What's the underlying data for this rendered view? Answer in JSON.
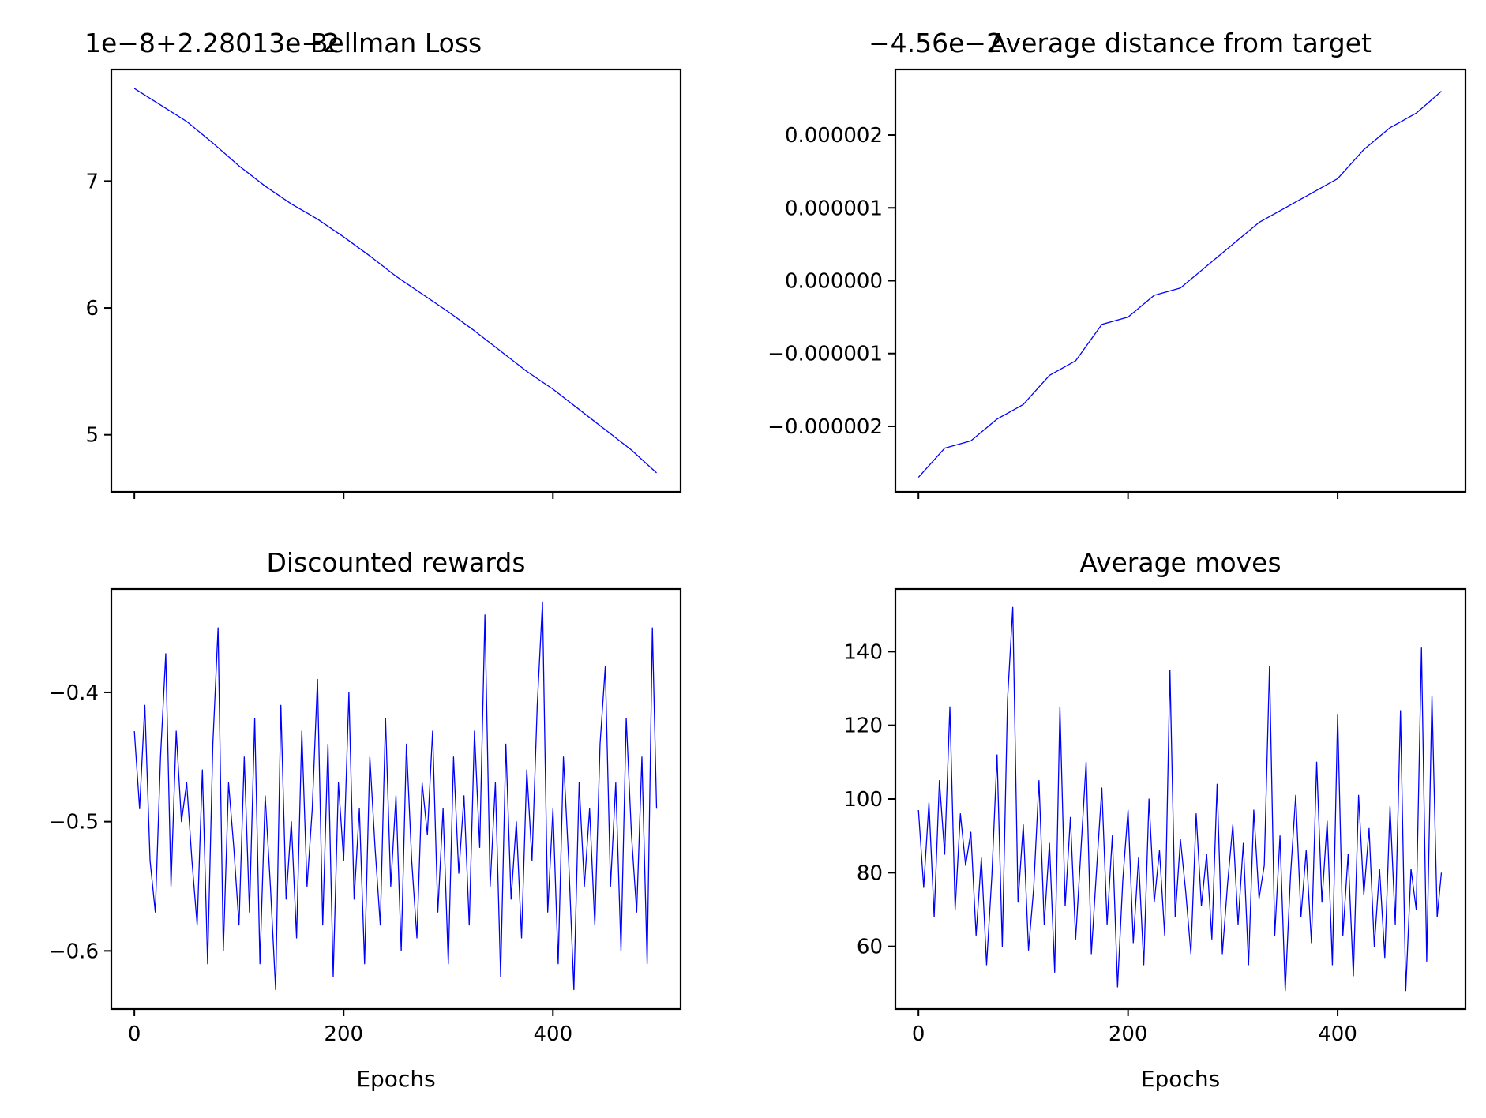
{
  "chart_data": [
    {
      "type": "line",
      "title": "Bellman Loss",
      "offset_text": "1e−8+2.28013e−2",
      "xlabel": "",
      "ylabel": "",
      "xlim": [
        -22,
        522
      ],
      "ylim": [
        4.55,
        7.88
      ],
      "x_ticks": [
        0,
        200,
        400
      ],
      "x_tick_labels": [],
      "y_ticks": [
        5,
        6,
        7
      ],
      "y_tick_labels": [
        "5",
        "6",
        "7"
      ],
      "grid": false,
      "series": [
        {
          "color": "#0000ff",
          "x": [
            0,
            25,
            50,
            75,
            100,
            125,
            150,
            175,
            200,
            225,
            250,
            275,
            300,
            325,
            350,
            375,
            400,
            425,
            450,
            475,
            499
          ],
          "values": [
            7.73,
            7.6,
            7.47,
            7.3,
            7.12,
            6.96,
            6.82,
            6.7,
            6.56,
            6.41,
            6.25,
            6.11,
            5.97,
            5.82,
            5.66,
            5.5,
            5.36,
            5.2,
            5.04,
            4.88,
            4.7
          ]
        }
      ]
    },
    {
      "type": "line",
      "title": "Average distance from target",
      "offset_text": "−4.56e−2",
      "xlabel": "",
      "ylabel": "",
      "xlim": [
        -22,
        522
      ],
      "ylim": [
        -2.9e-06,
        2.9e-06
      ],
      "x_ticks": [
        0,
        200,
        400
      ],
      "x_tick_labels": [],
      "y_ticks": [
        -2e-06,
        -1e-06,
        0.0,
        1e-06,
        2e-06
      ],
      "y_tick_labels": [
        "−0.000002",
        "−0.000001",
        "0.000000",
        "0.000001",
        "0.000002"
      ],
      "grid": false,
      "series": [
        {
          "color": "#0000ff",
          "x": [
            0,
            25,
            50,
            75,
            100,
            125,
            150,
            175,
            200,
            225,
            250,
            275,
            300,
            325,
            350,
            375,
            400,
            425,
            450,
            475,
            499
          ],
          "values": [
            -2.7e-06,
            -2.3e-06,
            -2.2e-06,
            -1.9e-06,
            -1.7e-06,
            -1.3e-06,
            -1.1e-06,
            -6e-07,
            -5e-07,
            -2e-07,
            -1e-07,
            2e-07,
            5e-07,
            8e-07,
            1e-06,
            1.2e-06,
            1.4e-06,
            1.8e-06,
            2.1e-06,
            2.3e-06,
            2.6e-06
          ]
        }
      ]
    },
    {
      "type": "line",
      "title": "Discounted rewards",
      "offset_text": "",
      "xlabel": "Epochs",
      "ylabel": "",
      "xlim": [
        -22,
        522
      ],
      "ylim": [
        -0.645,
        -0.32
      ],
      "x_ticks": [
        0,
        200,
        400
      ],
      "x_tick_labels": [
        "0",
        "200",
        "400"
      ],
      "y_ticks": [
        -0.6,
        -0.5,
        -0.4
      ],
      "y_tick_labels": [
        "−0.6",
        "−0.5",
        "−0.4"
      ],
      "grid": false,
      "series": [
        {
          "color": "#0000ff",
          "x": [
            0,
            5,
            10,
            15,
            20,
            25,
            30,
            35,
            40,
            45,
            50,
            55,
            60,
            65,
            70,
            75,
            80,
            85,
            90,
            95,
            100,
            105,
            110,
            115,
            120,
            125,
            130,
            135,
            140,
            145,
            150,
            155,
            160,
            165,
            170,
            175,
            180,
            185,
            190,
            195,
            200,
            205,
            210,
            215,
            220,
            225,
            230,
            235,
            240,
            245,
            250,
            255,
            260,
            265,
            270,
            275,
            280,
            285,
            290,
            295,
            300,
            305,
            310,
            315,
            320,
            325,
            330,
            335,
            340,
            345,
            350,
            355,
            360,
            365,
            370,
            375,
            380,
            385,
            390,
            395,
            400,
            405,
            410,
            415,
            420,
            425,
            430,
            435,
            440,
            445,
            450,
            455,
            460,
            465,
            470,
            475,
            480,
            485,
            490,
            495,
            499
          ],
          "values": [
            -0.43,
            -0.49,
            -0.41,
            -0.53,
            -0.57,
            -0.45,
            -0.37,
            -0.55,
            -0.43,
            -0.5,
            -0.47,
            -0.53,
            -0.58,
            -0.46,
            -0.61,
            -0.44,
            -0.35,
            -0.6,
            -0.47,
            -0.52,
            -0.58,
            -0.45,
            -0.57,
            -0.42,
            -0.61,
            -0.48,
            -0.55,
            -0.63,
            -0.41,
            -0.56,
            -0.5,
            -0.59,
            -0.43,
            -0.55,
            -0.49,
            -0.39,
            -0.58,
            -0.44,
            -0.62,
            -0.47,
            -0.53,
            -0.4,
            -0.56,
            -0.49,
            -0.61,
            -0.45,
            -0.52,
            -0.58,
            -0.42,
            -0.55,
            -0.48,
            -0.6,
            -0.44,
            -0.53,
            -0.59,
            -0.47,
            -0.51,
            -0.43,
            -0.57,
            -0.49,
            -0.61,
            -0.45,
            -0.54,
            -0.48,
            -0.58,
            -0.43,
            -0.52,
            -0.34,
            -0.55,
            -0.47,
            -0.62,
            -0.44,
            -0.56,
            -0.5,
            -0.59,
            -0.46,
            -0.53,
            -0.41,
            -0.33,
            -0.57,
            -0.49,
            -0.61,
            -0.45,
            -0.53,
            -0.63,
            -0.47,
            -0.55,
            -0.49,
            -0.58,
            -0.44,
            -0.38,
            -0.55,
            -0.47,
            -0.6,
            -0.42,
            -0.51,
            -0.57,
            -0.45,
            -0.61,
            -0.35,
            -0.49
          ]
        }
      ]
    },
    {
      "type": "line",
      "title": "Average moves",
      "offset_text": "",
      "xlabel": "Epochs",
      "ylabel": "",
      "xlim": [
        -22,
        522
      ],
      "ylim": [
        43,
        157
      ],
      "x_ticks": [
        0,
        200,
        400
      ],
      "x_tick_labels": [
        "0",
        "200",
        "400"
      ],
      "y_ticks": [
        60,
        80,
        100,
        120,
        140
      ],
      "y_tick_labels": [
        "60",
        "80",
        "100",
        "120",
        "140"
      ],
      "grid": false,
      "series": [
        {
          "color": "#0000ff",
          "x": [
            0,
            5,
            10,
            15,
            20,
            25,
            30,
            35,
            40,
            45,
            50,
            55,
            60,
            65,
            70,
            75,
            80,
            85,
            90,
            95,
            100,
            105,
            110,
            115,
            120,
            125,
            130,
            135,
            140,
            145,
            150,
            155,
            160,
            165,
            170,
            175,
            180,
            185,
            190,
            195,
            200,
            205,
            210,
            215,
            220,
            225,
            230,
            235,
            240,
            245,
            250,
            255,
            260,
            265,
            270,
            275,
            280,
            285,
            290,
            295,
            300,
            305,
            310,
            315,
            320,
            325,
            330,
            335,
            340,
            345,
            350,
            355,
            360,
            365,
            370,
            375,
            380,
            385,
            390,
            395,
            400,
            405,
            410,
            415,
            420,
            425,
            430,
            435,
            440,
            445,
            450,
            455,
            460,
            465,
            470,
            475,
            480,
            485,
            490,
            495,
            499
          ],
          "values": [
            97,
            76,
            99,
            68,
            105,
            85,
            125,
            70,
            96,
            82,
            91,
            63,
            84,
            55,
            79,
            112,
            60,
            127,
            152,
            72,
            93,
            59,
            76,
            105,
            66,
            88,
            53,
            125,
            71,
            95,
            62,
            86,
            110,
            58,
            81,
            103,
            66,
            90,
            49,
            78,
            97,
            61,
            84,
            55,
            100,
            72,
            86,
            63,
            135,
            68,
            89,
            75,
            58,
            96,
            71,
            85,
            62,
            104,
            58,
            77,
            93,
            66,
            88,
            55,
            97,
            73,
            82,
            136,
            63,
            90,
            48,
            79,
            101,
            68,
            86,
            61,
            110,
            72,
            94,
            55,
            123,
            63,
            85,
            52,
            101,
            74,
            92,
            60,
            81,
            57,
            98,
            66,
            124,
            48,
            81,
            70,
            141,
            56,
            128,
            68,
            80
          ]
        }
      ]
    }
  ]
}
